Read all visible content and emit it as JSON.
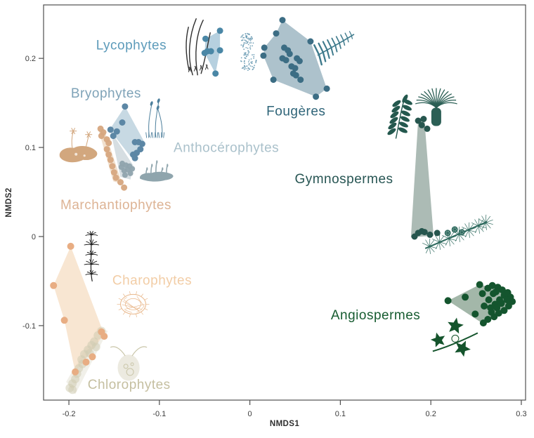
{
  "chart_data": {
    "type": "scatter",
    "title": "",
    "xlabel": "NMDS1",
    "ylabel": "NMDS2",
    "xlim": [
      -0.228,
      0.3047
    ],
    "ylim": [
      -0.1836,
      0.26
    ],
    "grid": false,
    "axis_color": "#4f4f4f",
    "tick_label_color": "#3c3c3c",
    "background": "#ffffff",
    "x_ticks": [
      -0.2,
      -0.1,
      0,
      0.1,
      0.2,
      0.3
    ],
    "x_tick_labels": [
      "-0.2",
      "-0.1",
      "0",
      "0.1",
      "0.2",
      "0.3"
    ],
    "y_ticks": [
      0.2,
      0.1,
      0,
      -0.1
    ],
    "y_tick_labels": [
      "0.2",
      "0.1",
      "0",
      "-0.1"
    ],
    "groups": [
      {
        "id": "lycophytes",
        "label": "Lycophytes",
        "label_color": "#5d9bba",
        "label_size": 19,
        "label_pos": [
          -0.131,
          0.215
        ],
        "point_color": "#4a87a6",
        "point_radius": 4.5,
        "point_opacity": 1,
        "hull_color": "#aecbdb",
        "hull_opacity": 0.9,
        "hull": [
          [
            -0.033,
            0.231
          ],
          [
            -0.049,
            0.222
          ],
          [
            -0.05,
            0.206
          ],
          [
            -0.038,
            0.183
          ],
          [
            -0.033,
            0.209
          ]
        ],
        "points": [
          [
            -0.033,
            0.231
          ],
          [
            -0.049,
            0.222
          ],
          [
            -0.05,
            0.206
          ],
          [
            -0.047,
            0.208
          ],
          [
            -0.043,
            0.208
          ],
          [
            -0.033,
            0.209
          ],
          [
            -0.038,
            0.183
          ]
        ]
      },
      {
        "id": "fougeres",
        "label": "Fougères",
        "label_color": "#2e6478",
        "label_size": 19,
        "label_pos": [
          0.051,
          0.141
        ],
        "point_color": "#3c6d84",
        "point_radius": 4.5,
        "point_opacity": 1,
        "hull_color": "#a9bfc9",
        "hull_opacity": 0.95,
        "hull": [
          [
            0.036,
            0.243
          ],
          [
            0.029,
            0.228
          ],
          [
            0.016,
            0.212
          ],
          [
            0.015,
            0.203
          ],
          [
            0.026,
            0.176
          ],
          [
            0.073,
            0.157
          ],
          [
            0.085,
            0.166
          ],
          [
            0.067,
            0.219
          ]
        ],
        "points": [
          [
            0.036,
            0.243
          ],
          [
            0.029,
            0.228
          ],
          [
            0.016,
            0.212
          ],
          [
            0.015,
            0.203
          ],
          [
            0.026,
            0.176
          ],
          [
            0.073,
            0.157
          ],
          [
            0.085,
            0.166
          ],
          [
            0.067,
            0.219
          ],
          [
            0.038,
            0.212
          ],
          [
            0.044,
            0.205
          ],
          [
            0.04,
            0.198
          ],
          [
            0.052,
            0.2
          ],
          [
            0.055,
            0.197
          ],
          [
            0.046,
            0.191
          ],
          [
            0.05,
            0.189
          ],
          [
            0.048,
            0.183
          ],
          [
            0.051,
            0.181
          ],
          [
            0.056,
            0.176
          ],
          [
            0.042,
            0.209
          ],
          [
            0.036,
            0.2
          ]
        ]
      },
      {
        "id": "bryophytes",
        "label": "Bryophytes",
        "label_color": "#7fa3b8",
        "label_size": 19,
        "label_pos": [
          -0.159,
          0.161
        ],
        "point_color": "#5c87a5",
        "point_radius": 4.5,
        "point_opacity": 1,
        "hull_color": "#b9cfdc",
        "hull_opacity": 0.8,
        "hull": [
          [
            -0.138,
            0.146
          ],
          [
            -0.155,
            0.12
          ],
          [
            -0.129,
            0.086
          ],
          [
            -0.116,
            0.105
          ]
        ],
        "points": [
          [
            -0.138,
            0.146
          ],
          [
            -0.141,
            0.128
          ],
          [
            -0.154,
            0.12
          ],
          [
            -0.151,
            0.113
          ],
          [
            -0.147,
            0.118
          ],
          [
            -0.127,
            0.106
          ],
          [
            -0.123,
            0.106
          ],
          [
            -0.119,
            0.104
          ],
          [
            -0.121,
            0.098
          ],
          [
            -0.125,
            0.094
          ],
          [
            -0.129,
            0.092
          ],
          [
            -0.127,
            0.088
          ]
        ]
      },
      {
        "id": "marchantiophytes",
        "label": "Marchantiophytes",
        "label_color": "#ddb394",
        "label_size": 19,
        "label_pos": [
          -0.148,
          0.036
        ],
        "point_color": "#d6a67f",
        "point_radius": 4.5,
        "point_opacity": 0.95,
        "hull_color": "#e8cbae",
        "hull_opacity": 0.6,
        "hull": [
          [
            -0.167,
            0.119
          ],
          [
            -0.16,
            0.117
          ],
          [
            -0.141,
            0.059
          ],
          [
            -0.151,
            0.062
          ]
        ],
        "points": [
          [
            -0.165,
            0.121
          ],
          [
            -0.164,
            0.113
          ],
          [
            -0.158,
            0.109
          ],
          [
            -0.156,
            0.105
          ],
          [
            -0.158,
            0.098
          ],
          [
            -0.156,
            0.092
          ],
          [
            -0.154,
            0.086
          ],
          [
            -0.152,
            0.079
          ],
          [
            -0.15,
            0.072
          ],
          [
            -0.148,
            0.066
          ],
          [
            -0.143,
            0.061
          ],
          [
            -0.139,
            0.055
          ],
          [
            -0.162,
            0.117
          ]
        ]
      },
      {
        "id": "anthocerophytes",
        "label": "Anthocérophytes",
        "label_color": "#aac1cb",
        "label_size": 19,
        "label_pos": [
          -0.026,
          0.1
        ],
        "point_color": "#8fa3ad",
        "point_radius": 4,
        "point_opacity": 0.95,
        "hull_color": "#b4c3ca",
        "hull_opacity": 0.55,
        "hull": [
          [
            -0.154,
            0.119
          ],
          [
            -0.129,
            0.08
          ],
          [
            -0.132,
            0.064
          ],
          [
            -0.143,
            0.067
          ]
        ],
        "points": [
          [
            -0.141,
            0.082
          ],
          [
            -0.137,
            0.08
          ],
          [
            -0.133,
            0.079
          ],
          [
            -0.13,
            0.076
          ],
          [
            -0.135,
            0.075
          ],
          [
            -0.139,
            0.074
          ],
          [
            -0.142,
            0.078
          ],
          [
            -0.138,
            0.069
          ],
          [
            -0.132,
            0.071
          ]
        ]
      },
      {
        "id": "chlorophytes",
        "label": "Chlorophytes",
        "label_color": "#c5bfa0",
        "label_size": 19,
        "label_pos": [
          -0.1335,
          -0.166
        ],
        "point_color": "#cfccb2",
        "point_radius": 6,
        "point_opacity": 0.55,
        "hull_color": "#d8d5c0",
        "hull_opacity": 0.35,
        "hull": [
          [
            -0.203,
            -0.163
          ],
          [
            -0.168,
            -0.102
          ],
          [
            -0.157,
            -0.106
          ],
          [
            -0.193,
            -0.177
          ]
        ],
        "points": [
          [
            -0.199,
            -0.17
          ],
          [
            -0.196,
            -0.165
          ],
          [
            -0.193,
            -0.16
          ],
          [
            -0.191,
            -0.154
          ],
          [
            -0.189,
            -0.148
          ],
          [
            -0.185,
            -0.143
          ],
          [
            -0.186,
            -0.138
          ],
          [
            -0.183,
            -0.132
          ],
          [
            -0.179,
            -0.127
          ],
          [
            -0.177,
            -0.131
          ],
          [
            -0.175,
            -0.122
          ],
          [
            -0.172,
            -0.118
          ],
          [
            -0.17,
            -0.124
          ],
          [
            -0.168,
            -0.111
          ],
          [
            -0.164,
            -0.106
          ],
          [
            -0.196,
            -0.172
          ]
        ]
      },
      {
        "id": "charophytes",
        "label": "Charophytes",
        "label_color": "#f2cda6",
        "label_size": 19,
        "label_pos": [
          -0.108,
          -0.049
        ],
        "point_color": "#e8ad83",
        "point_radius": 5,
        "point_opacity": 1,
        "hull_color": "#f6ddc3",
        "hull_opacity": 0.75,
        "hull": [
          [
            -0.198,
            -0.011
          ],
          [
            -0.217,
            -0.055
          ],
          [
            -0.205,
            -0.094
          ],
          [
            -0.193,
            -0.152
          ],
          [
            -0.161,
            -0.11
          ]
        ],
        "points": [
          [
            -0.198,
            -0.011
          ],
          [
            -0.217,
            -0.055
          ],
          [
            -0.205,
            -0.094
          ],
          [
            -0.164,
            -0.107
          ],
          [
            -0.161,
            -0.112
          ],
          [
            -0.174,
            -0.135
          ],
          [
            -0.181,
            -0.141
          ],
          [
            -0.193,
            -0.152
          ]
        ]
      },
      {
        "id": "gymnospermes",
        "label": "Gymnospermes",
        "label_color": "#275553",
        "label_size": 19,
        "label_pos": [
          0.104,
          0.065
        ],
        "point_color": "#26564e",
        "point_radius": 4.5,
        "point_opacity": 1,
        "hull_color": "#a8b7b1",
        "hull_opacity": 0.95,
        "hull": [
          [
            0.186,
            0.131
          ],
          [
            0.193,
            0.13
          ],
          [
            0.203,
            0.001
          ],
          [
            0.178,
            -0.001
          ]
        ],
        "points": [
          [
            0.186,
            0.13
          ],
          [
            0.192,
            0.132
          ],
          [
            0.196,
            0.121
          ],
          [
            0.19,
            0.125
          ],
          [
            0.182,
            0
          ],
          [
            0.186,
            0.004
          ],
          [
            0.19,
            0.006
          ],
          [
            0.193,
            0.005
          ],
          [
            0.199,
            0.002
          ],
          [
            0.207,
            0.004
          ]
        ]
      },
      {
        "id": "angiospermes",
        "label": "Angiospermes",
        "label_color": "#175c31",
        "label_size": 19,
        "label_pos": [
          0.139,
          -0.088
        ],
        "point_color": "#14552e",
        "point_radius": 5,
        "point_opacity": 1,
        "hull_color": "#9eb3a4",
        "hull_opacity": 0.95,
        "hull": [
          [
            0.219,
            -0.072
          ],
          [
            0.254,
            -0.054
          ],
          [
            0.275,
            -0.059
          ],
          [
            0.29,
            -0.069
          ],
          [
            0.281,
            -0.085
          ],
          [
            0.258,
            -0.098
          ]
        ],
        "points": [
          [
            0.219,
            -0.072
          ],
          [
            0.238,
            -0.068
          ],
          [
            0.254,
            -0.054
          ],
          [
            0.249,
            -0.087
          ],
          [
            0.257,
            -0.064
          ],
          [
            0.263,
            -0.058
          ],
          [
            0.268,
            -0.055
          ],
          [
            0.274,
            -0.057
          ],
          [
            0.279,
            -0.06
          ],
          [
            0.285,
            -0.063
          ],
          [
            0.288,
            -0.068
          ],
          [
            0.29,
            -0.073
          ],
          [
            0.286,
            -0.078
          ],
          [
            0.281,
            -0.083
          ],
          [
            0.275,
            -0.086
          ],
          [
            0.27,
            -0.09
          ],
          [
            0.263,
            -0.093
          ],
          [
            0.258,
            -0.097
          ],
          [
            0.266,
            -0.08
          ],
          [
            0.271,
            -0.076
          ],
          [
            0.276,
            -0.071
          ],
          [
            0.281,
            -0.066
          ],
          [
            0.269,
            -0.064
          ],
          [
            0.264,
            -0.071
          ],
          [
            0.259,
            -0.078
          ],
          [
            0.267,
            -0.085
          ],
          [
            0.273,
            -0.08
          ],
          [
            0.278,
            -0.075
          ],
          [
            0.284,
            -0.071
          ],
          [
            0.272,
            -0.062
          ]
        ]
      }
    ],
    "illustrations": [
      {
        "name": "lycopod-sketch",
        "x": -0.057,
        "y": 0.213,
        "color": "#2f2f2f"
      },
      {
        "name": "moss-speckle",
        "x": -0.003,
        "y": 0.207,
        "color": "#5e93ad"
      },
      {
        "name": "fern",
        "x": 0.095,
        "y": 0.216,
        "color": "#3e7a8c"
      },
      {
        "name": "moss-capsules",
        "x": -0.104,
        "y": 0.132,
        "color": "#4d7f9c"
      },
      {
        "name": "liverwort",
        "x": -0.189,
        "y": 0.094,
        "color": "#d2a77e"
      },
      {
        "name": "hornwort",
        "x": -0.102,
        "y": 0.072,
        "color": "#8fa5ad"
      },
      {
        "name": "pinnate-leaf",
        "x": 0.166,
        "y": 0.132,
        "color": "#24584e"
      },
      {
        "name": "cycad",
        "x": 0.206,
        "y": 0.143,
        "color": "#2b5f55"
      },
      {
        "name": "pine-branch",
        "x": 0.228,
        "y": 0.004,
        "color": "#2e6a5e"
      },
      {
        "name": "chara-sketch",
        "x": -0.175,
        "y": -0.022,
        "color": "#1e1e1e"
      },
      {
        "name": "cell-net",
        "x": -0.129,
        "y": -0.076,
        "color": "#e9b88c"
      },
      {
        "name": "green-alga-cell",
        "x": -0.134,
        "y": -0.141,
        "color": "#c9c5a8"
      },
      {
        "name": "maple-branch",
        "x": 0.227,
        "y": -0.113,
        "color": "#14542c"
      }
    ]
  }
}
